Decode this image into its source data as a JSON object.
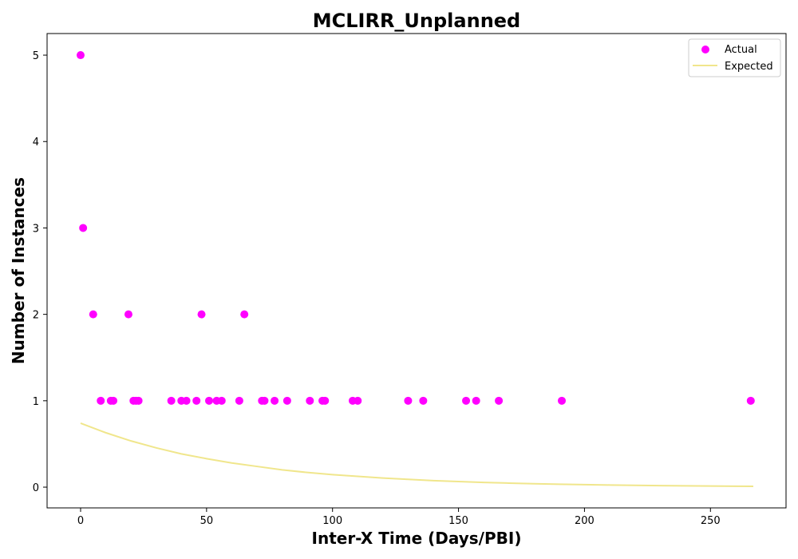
{
  "chart_data": {
    "type": "scatter",
    "title": "MCLIRR_Unplanned",
    "xlabel": "Inter-X Time (Days/PBI)",
    "ylabel": "Number of Instances",
    "xlim": [
      -13.3,
      280
    ],
    "ylim": [
      -0.24,
      5.25
    ],
    "xticks": [
      0,
      50,
      100,
      150,
      200,
      250
    ],
    "yticks": [
      0,
      1,
      2,
      3,
      4,
      5
    ],
    "grid": false,
    "legend_position": "top-right",
    "series": [
      {
        "name": "Actual",
        "kind": "scatter",
        "color": "#ff00ff",
        "points": [
          [
            0,
            5
          ],
          [
            1,
            3
          ],
          [
            5,
            2
          ],
          [
            19,
            2
          ],
          [
            48,
            2
          ],
          [
            65,
            2
          ],
          [
            8,
            1
          ],
          [
            12,
            1
          ],
          [
            13,
            1
          ],
          [
            21,
            1
          ],
          [
            22,
            1
          ],
          [
            23,
            1
          ],
          [
            36,
            1
          ],
          [
            40,
            1
          ],
          [
            42,
            1
          ],
          [
            46,
            1
          ],
          [
            51,
            1
          ],
          [
            54,
            1
          ],
          [
            56,
            1
          ],
          [
            63,
            1
          ],
          [
            72,
            1
          ],
          [
            73,
            1
          ],
          [
            77,
            1
          ],
          [
            82,
            1
          ],
          [
            91,
            1
          ],
          [
            96,
            1
          ],
          [
            97,
            1
          ],
          [
            108,
            1
          ],
          [
            110,
            1
          ],
          [
            130,
            1
          ],
          [
            136,
            1
          ],
          [
            153,
            1
          ],
          [
            157,
            1
          ],
          [
            166,
            1
          ],
          [
            191,
            1
          ],
          [
            266,
            1
          ]
        ]
      },
      {
        "name": "Expected",
        "kind": "line",
        "color": "#f0e68c",
        "points": [
          [
            0,
            0.74
          ],
          [
            10,
            0.63
          ],
          [
            20,
            0.535
          ],
          [
            30,
            0.455
          ],
          [
            40,
            0.385
          ],
          [
            50,
            0.33
          ],
          [
            60,
            0.28
          ],
          [
            70,
            0.24
          ],
          [
            80,
            0.2
          ],
          [
            90,
            0.17
          ],
          [
            100,
            0.145
          ],
          [
            110,
            0.125
          ],
          [
            120,
            0.105
          ],
          [
            130,
            0.09
          ],
          [
            140,
            0.075
          ],
          [
            150,
            0.065
          ],
          [
            160,
            0.055
          ],
          [
            170,
            0.047
          ],
          [
            180,
            0.04
          ],
          [
            190,
            0.034
          ],
          [
            200,
            0.029
          ],
          [
            210,
            0.025
          ],
          [
            220,
            0.021
          ],
          [
            230,
            0.018
          ],
          [
            240,
            0.015
          ],
          [
            250,
            0.013
          ],
          [
            260,
            0.011
          ],
          [
            267,
            0.01
          ]
        ]
      }
    ]
  }
}
